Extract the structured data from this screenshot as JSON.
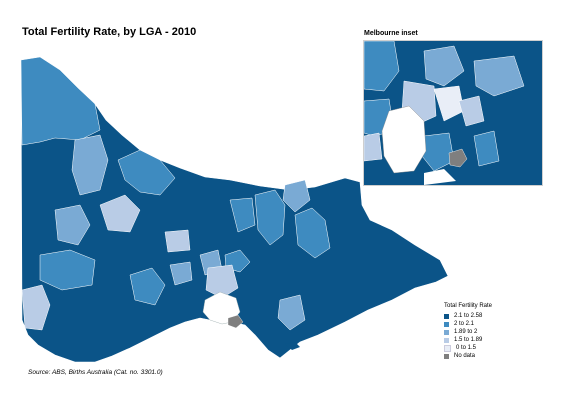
{
  "title": "Total Fertility Rate, by LGA - 2010",
  "inset_title": "Melbourne inset",
  "source": "Source:  ABS, Births Australia (Cat. no. 3301.0)",
  "legend": {
    "title": "Total Fertility Rate",
    "items": [
      {
        "label": "2.1  to 2.58",
        "color": "#0b5488"
      },
      {
        "label": "2     to 2.1",
        "color": "#3e8bc0"
      },
      {
        "label": "1.89 to 2",
        "color": "#7aaad4"
      },
      {
        "label": "1.5  to 1.89",
        "color": "#b9cce6"
      },
      {
        "label": "0     to 1.5",
        "color": "#e9eef7"
      },
      {
        "label": "No data",
        "color": "#7f7f7f"
      }
    ]
  }
}
